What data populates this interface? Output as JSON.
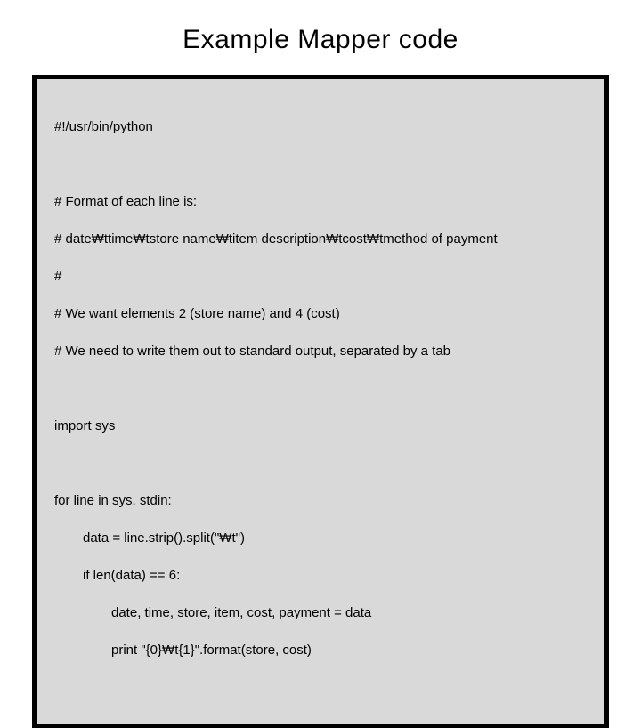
{
  "slide": {
    "title": "Example Mapper code",
    "title_fontsize": 30,
    "title_color": "#000000",
    "background_color": "#ffffff"
  },
  "codebox": {
    "border_color": "#000000",
    "border_width": 5,
    "background_color": "#d9d9d9",
    "font_family": "Arial",
    "font_size": 15,
    "text_color": "#000000",
    "lines": {
      "l1": "#!/usr/bin/python",
      "l2": "# Format of each line is:",
      "l3": "# date₩ttime₩tstore name₩titem description₩tcost₩tmethod of payment",
      "l4": "#",
      "l5": "# We want elements 2 (store name) and 4 (cost)",
      "l6": "# We need to write them out to standard output, separated by a tab",
      "l7": "import sys",
      "l8": "for line in sys. stdin:",
      "l9": "data = line.strip().split(\"₩t\")",
      "l10": "if len(data) == 6:",
      "l11": "date, time, store, item, cost, payment = data",
      "l12": "print \"{0}₩t{1}\".format(store, cost)"
    }
  }
}
